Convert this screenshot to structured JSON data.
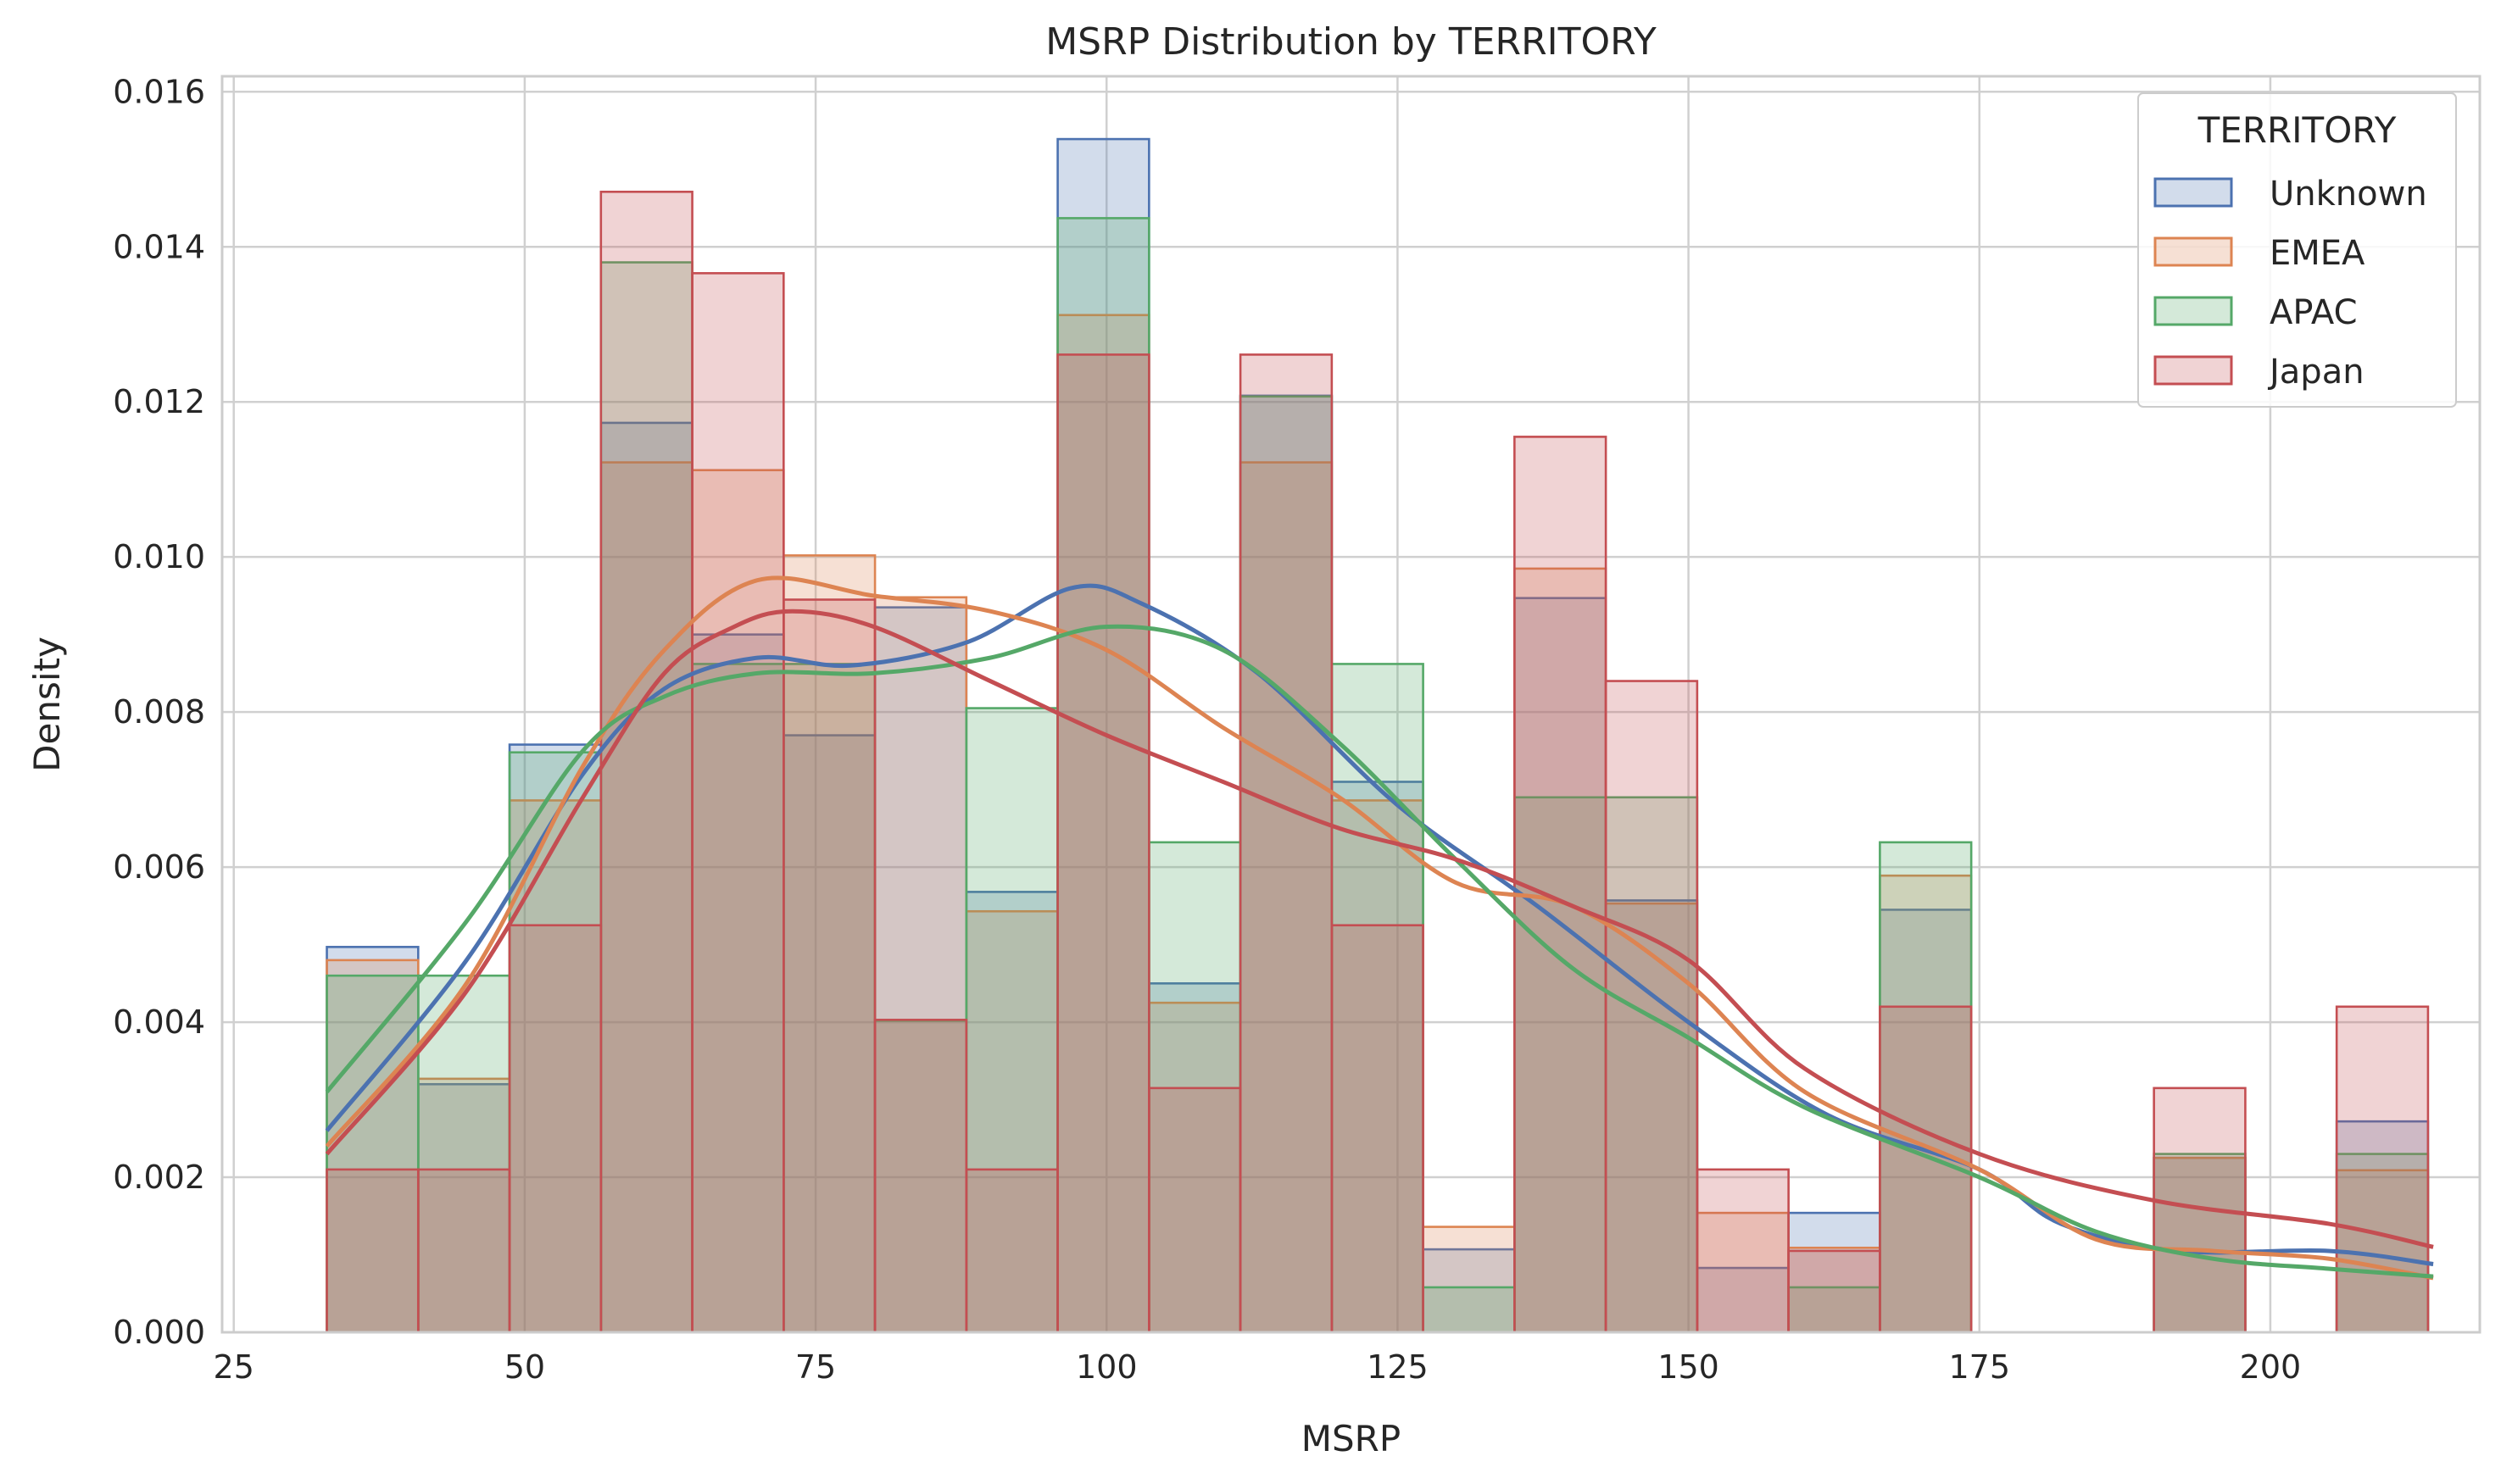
{
  "chart_data": {
    "type": "histogram",
    "title": "MSRP Distribution by TERRITORY",
    "xlabel": "MSRP",
    "ylabel": "Density",
    "xlim": [
      24,
      218
    ],
    "ylim": [
      0,
      0.0162
    ],
    "x_ticks": [
      25,
      50,
      75,
      100,
      125,
      150,
      175,
      200
    ],
    "y_ticks": [
      0,
      0.002,
      0.004,
      0.006,
      0.008,
      0.01,
      0.012,
      0.014,
      0.016
    ],
    "x_tick_labels": [
      "25",
      "50",
      "75",
      "100",
      "125",
      "150",
      "175",
      "200"
    ],
    "y_tick_labels": [
      "0.000",
      "0.002",
      "0.004",
      "0.006",
      "0.008",
      "0.010",
      "0.012",
      "0.014",
      "0.016"
    ],
    "grid": true,
    "legend": {
      "title": "TERRITORY",
      "position": "top-right"
    },
    "bin_edges": [
      33,
      40.85,
      48.7,
      56.55,
      64.4,
      72.25,
      80.1,
      87.95,
      95.8,
      103.65,
      111.5,
      119.35,
      127.2,
      135.05,
      142.9,
      150.75,
      158.6,
      166.45,
      174.3,
      182.15,
      190,
      197.85,
      205.7,
      213.55
    ],
    "series": [
      {
        "name": "Unknown",
        "color": "#4c72b0",
        "values": [
          0.00497,
          0.0032,
          0.00758,
          0.01173,
          0.009,
          0.0077,
          0.00935,
          0.00568,
          0.01539,
          0.0045,
          0.01208,
          0.0071,
          0.00107,
          0.00947,
          0.00557,
          0.00083,
          0.00154,
          0.00545,
          0,
          0,
          0.00225,
          0,
          0.00272
        ],
        "kde_x": [
          33,
          45,
          55,
          62,
          70,
          78,
          88,
          97,
          103,
          113,
          125,
          137,
          150,
          162,
          175,
          182,
          192,
          205,
          214
        ],
        "kde_y": [
          0.0026,
          0.0048,
          0.0072,
          0.0083,
          0.0087,
          0.0086,
          0.0089,
          0.0096,
          0.0094,
          0.0085,
          0.0068,
          0.0055,
          0.004,
          0.0028,
          0.0021,
          0.0014,
          0.00105,
          0.00105,
          0.00088
        ]
      },
      {
        "name": "EMEA",
        "color": "#dd8452",
        "values": [
          0.0048,
          0.00327,
          0.00686,
          0.01122,
          0.01112,
          0.01002,
          0.00948,
          0.00543,
          0.01312,
          0.00425,
          0.01122,
          0.00686,
          0.00136,
          0.00985,
          0.00553,
          0.00154,
          0.00109,
          0.00589,
          0,
          0,
          0.00225,
          0,
          0.00209
        ],
        "kde_x": [
          33,
          45,
          55,
          62,
          70,
          80,
          90,
          100,
          110,
          120,
          130,
          140,
          150,
          160,
          175,
          185,
          195,
          205,
          214
        ],
        "kde_y": [
          0.0024,
          0.0045,
          0.0073,
          0.0088,
          0.0097,
          0.0095,
          0.0093,
          0.0088,
          0.0078,
          0.0069,
          0.0058,
          0.0055,
          0.0045,
          0.0031,
          0.0021,
          0.0012,
          0.00105,
          0.00095,
          0.0007
        ]
      },
      {
        "name": "APAC",
        "color": "#55a868",
        "values": [
          0.0046,
          0.0046,
          0.00748,
          0.0138,
          0.00862,
          0.00862,
          0.00402,
          0.00805,
          0.01437,
          0.00632,
          0.01207,
          0.00862,
          0.00058,
          0.0069,
          0.0069,
          0,
          0.00058,
          0.00632,
          0,
          0,
          0.0023,
          0,
          0.0023
        ],
        "kde_x": [
          33,
          45,
          55,
          62,
          70,
          80,
          90,
          100,
          110,
          120,
          130,
          140,
          150,
          160,
          175,
          185,
          195,
          205,
          214
        ],
        "kde_y": [
          0.0031,
          0.0053,
          0.0075,
          0.0082,
          0.0085,
          0.0085,
          0.0087,
          0.0091,
          0.0088,
          0.0076,
          0.0061,
          0.0047,
          0.0038,
          0.0029,
          0.002,
          0.0013,
          0.00095,
          0.00082,
          0.00072
        ]
      },
      {
        "name": "Japan",
        "color": "#c44e52",
        "values": [
          0.0021,
          0.0021,
          0.00525,
          0.01471,
          0.01366,
          0.00945,
          0.00403,
          0.0021,
          0.01261,
          0.00315,
          0.01261,
          0.00525,
          0,
          0.01155,
          0.0084,
          0.0021,
          0.00105,
          0.0042,
          0,
          0,
          0.00315,
          0,
          0.0042
        ],
        "kde_x": [
          33,
          45,
          55,
          62,
          68,
          73,
          80,
          90,
          100,
          110,
          120,
          130,
          140,
          150,
          160,
          175,
          190,
          205,
          214
        ],
        "kde_y": [
          0.0023,
          0.0044,
          0.0069,
          0.0085,
          0.0091,
          0.0093,
          0.0091,
          0.0084,
          0.0077,
          0.0071,
          0.0065,
          0.0061,
          0.0055,
          0.0048,
          0.0034,
          0.0023,
          0.0017,
          0.0014,
          0.0011
        ]
      }
    ]
  }
}
